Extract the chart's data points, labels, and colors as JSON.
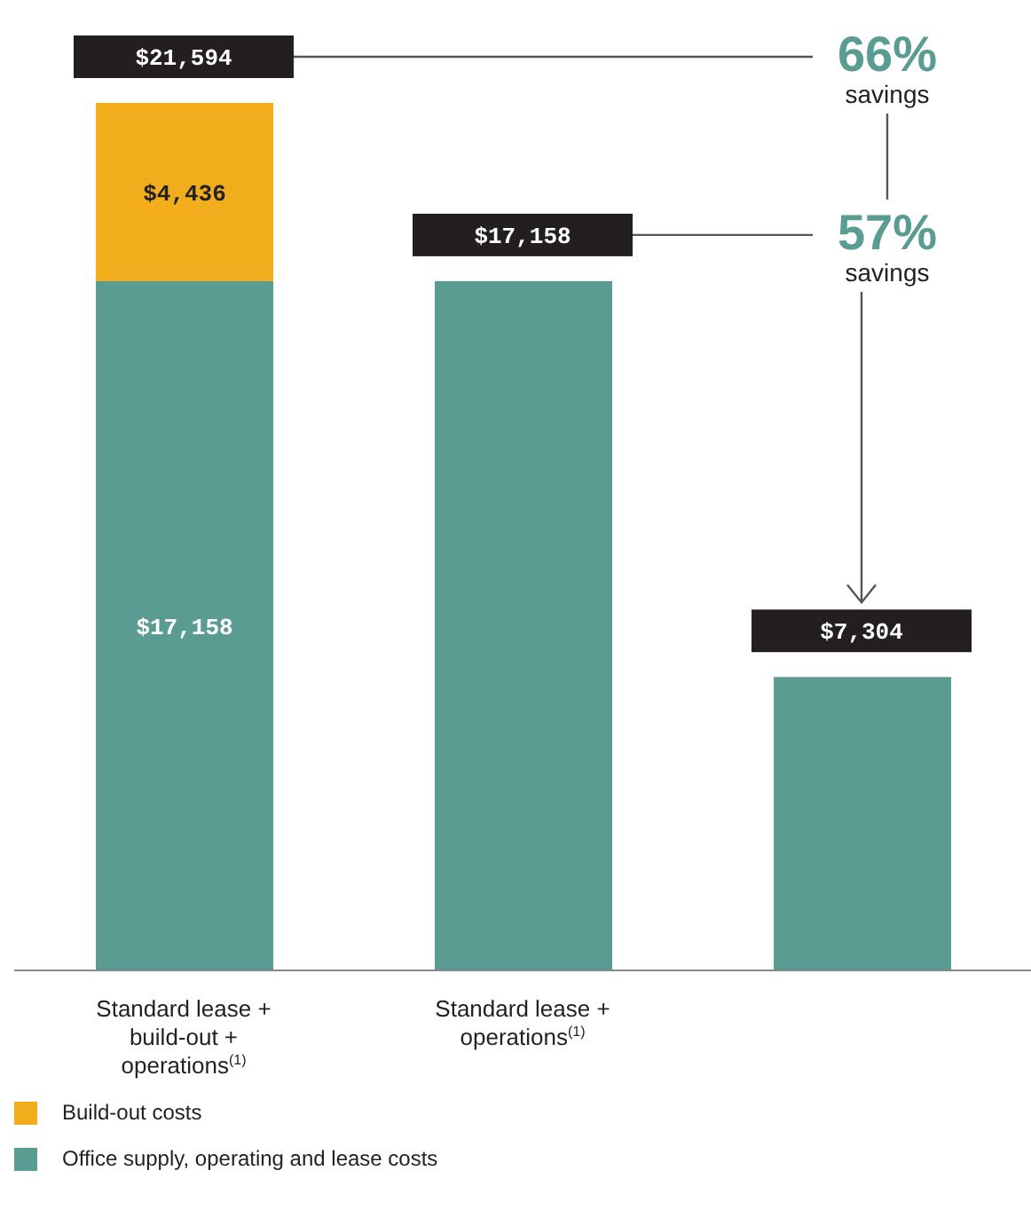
{
  "chart_data": {
    "type": "bar",
    "stacked": true,
    "categories": [
      "Standard lease + build-out + operations$^{(1)}$",
      "Standard lease + operations$^{(1)}$",
      null
    ],
    "series": [
      {
        "name": "Office supply, operating and lease costs",
        "color": "#5b9c92",
        "values": [
          17158,
          17158,
          7304
        ],
        "value_labels": [
          "$17,158",
          null,
          null
        ]
      },
      {
        "name": "Build-out costs",
        "color": "#f2ad1d",
        "values": [
          4436,
          null,
          null
        ],
        "value_labels": [
          "$4,436",
          null,
          null
        ]
      }
    ],
    "totals": [
      "$21,594",
      "$17,158",
      "$7,304"
    ],
    "annotations": [
      "66% savings",
      "57% savings"
    ],
    "legend": "bottom left"
  }
}
